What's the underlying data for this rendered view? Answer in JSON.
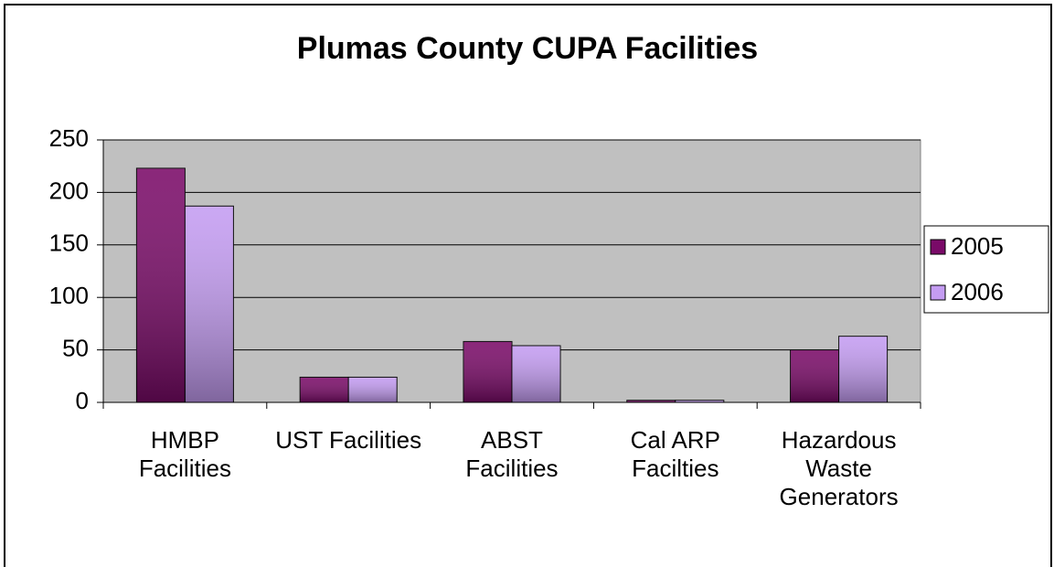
{
  "chart_data": {
    "type": "bar",
    "title": "Plumas County CUPA Facilities",
    "categories": [
      "HMBP Facilities",
      "UST Facilities",
      "ABST Facilities",
      "Cal ARP Facilties",
      "Hazardous Waste Generators"
    ],
    "series": [
      {
        "name": "2005",
        "color": "#7a0a68",
        "values": [
          223,
          24,
          58,
          2,
          50
        ]
      },
      {
        "name": "2006",
        "color": "#c49cf2",
        "values": [
          187,
          24,
          54,
          2,
          63
        ]
      }
    ],
    "ylim": [
      0,
      250
    ],
    "yticks": [
      0,
      50,
      100,
      150,
      200,
      250
    ],
    "grid": true,
    "legend": "right",
    "plot_background": "#c0c0c0"
  }
}
